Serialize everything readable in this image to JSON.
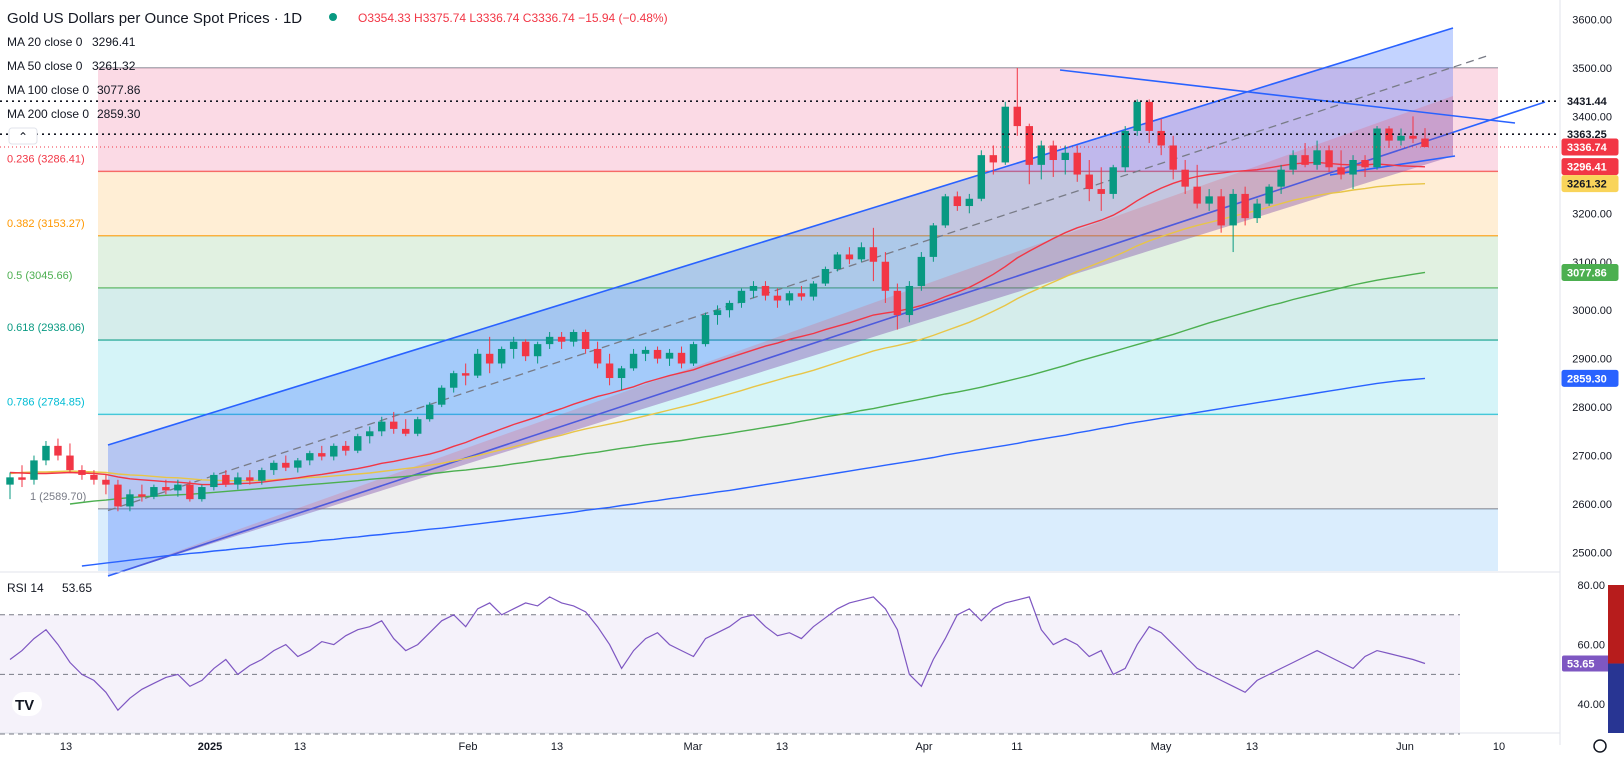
{
  "header": {
    "title": "Gold US Dollars per Ounce Spot Prices · 1D",
    "ohlc": "O3354.33 H3375.74 L3336.74 C3336.74 −15.94 (−0.48%)"
  },
  "legend": [
    {
      "label": "MA 20 close 0",
      "value": "3296.41",
      "color": "#f23645"
    },
    {
      "label": "MA 50 close 0",
      "value": "3261.32",
      "color": "#e0b000"
    },
    {
      "label": "MA 100 close 0",
      "value": "3077.86",
      "color": "#4caf50"
    },
    {
      "label": "MA 200 close 0",
      "value": "2859.30",
      "color": "#2962ff"
    }
  ],
  "colors": {
    "up": "#089981",
    "down": "#f23645",
    "channel": "#2962ff",
    "ma20": "#f23645",
    "ma50": "#e8c547",
    "ma100": "#4caf50",
    "ma200": "#2962ff",
    "rsi": "#7e57c2"
  },
  "price_badges": [
    {
      "value": "3431.44",
      "bg": "#ffffff",
      "fg": "#131722"
    },
    {
      "value": "3363.25",
      "bg": "#ffffff",
      "fg": "#131722"
    },
    {
      "value": "3336.74",
      "bg": "#f23645",
      "fg": "#ffffff"
    },
    {
      "value": "3296.41",
      "bg": "#f23645",
      "fg": "#ffffff"
    },
    {
      "value": "3261.32",
      "bg": "#f9d45a",
      "fg": "#131722"
    },
    {
      "value": "3077.86",
      "bg": "#4caf50",
      "fg": "#ffffff"
    },
    {
      "value": "2859.30",
      "bg": "#2962ff",
      "fg": "#ffffff"
    }
  ],
  "rsi": {
    "label": "RSI 14",
    "value": "53.65",
    "ticks": [
      "80.00",
      "60.00",
      "40.00"
    ]
  },
  "watermark": "TV",
  "chart_data": {
    "type": "candlestick",
    "title": "Gold US Dollars per Ounce Spot Prices · 1D",
    "y_axis": {
      "ticks": [
        "3600.00",
        "3500.00",
        "3400.00",
        "3300.00",
        "3200.00",
        "3100.00",
        "3000.00",
        "2900.00",
        "2800.00",
        "2700.00",
        "2600.00",
        "2500.00"
      ],
      "range": [
        2470,
        3610
      ]
    },
    "x_axis": {
      "ticks": [
        "13",
        "2025",
        "13",
        "Feb",
        "13",
        "Mar",
        "13",
        "Apr",
        "11",
        "May",
        "13",
        "Jun",
        "10"
      ]
    },
    "fibonacci": [
      {
        "level": "0.236",
        "price": 3286.41,
        "text": "0.236 (3286.41)",
        "color": "#f23645"
      },
      {
        "level": "0.382",
        "price": 3153.27,
        "text": "0.382 (3153.27)",
        "color": "#ff9800"
      },
      {
        "level": "0.5",
        "price": 3045.66,
        "text": "0.5 (3045.66)",
        "color": "#4caf50"
      },
      {
        "level": "0.618",
        "price": 2938.06,
        "text": "0.618 (2938.06)",
        "color": "#089981"
      },
      {
        "level": "0.786",
        "price": 2784.85,
        "text": "0.786 (2784.85)",
        "color": "#00bcd4"
      },
      {
        "level": "1",
        "price": 2589.7,
        "text": "1 (2589.70)",
        "color": "#787b86"
      }
    ],
    "fib_top": 3500,
    "candles": [
      [
        2640,
        2665,
        2610,
        2655
      ],
      [
        2655,
        2680,
        2635,
        2650
      ],
      [
        2650,
        2700,
        2640,
        2690
      ],
      [
        2690,
        2730,
        2680,
        2720
      ],
      [
        2720,
        2735,
        2690,
        2700
      ],
      [
        2700,
        2725,
        2665,
        2670
      ],
      [
        2670,
        2680,
        2650,
        2660
      ],
      [
        2660,
        2670,
        2640,
        2650
      ],
      [
        2650,
        2660,
        2620,
        2640
      ],
      [
        2640,
        2650,
        2585,
        2595
      ],
      [
        2595,
        2630,
        2585,
        2620
      ],
      [
        2620,
        2640,
        2605,
        2615
      ],
      [
        2615,
        2640,
        2610,
        2635
      ],
      [
        2635,
        2650,
        2620,
        2628
      ],
      [
        2628,
        2650,
        2615,
        2640
      ],
      [
        2640,
        2648,
        2605,
        2610
      ],
      [
        2610,
        2640,
        2605,
        2635
      ],
      [
        2635,
        2665,
        2628,
        2660
      ],
      [
        2660,
        2670,
        2635,
        2640
      ],
      [
        2640,
        2665,
        2630,
        2655
      ],
      [
        2655,
        2670,
        2640,
        2648
      ],
      [
        2648,
        2675,
        2640,
        2670
      ],
      [
        2670,
        2690,
        2660,
        2685
      ],
      [
        2685,
        2700,
        2668,
        2675
      ],
      [
        2675,
        2695,
        2665,
        2690
      ],
      [
        2690,
        2710,
        2680,
        2705
      ],
      [
        2705,
        2720,
        2690,
        2698
      ],
      [
        2698,
        2725,
        2690,
        2720
      ],
      [
        2720,
        2730,
        2700,
        2710
      ],
      [
        2710,
        2745,
        2705,
        2740
      ],
      [
        2740,
        2760,
        2725,
        2750
      ],
      [
        2750,
        2780,
        2740,
        2770
      ],
      [
        2770,
        2790,
        2745,
        2755
      ],
      [
        2755,
        2775,
        2740,
        2745
      ],
      [
        2745,
        2780,
        2740,
        2775
      ],
      [
        2775,
        2810,
        2770,
        2805
      ],
      [
        2805,
        2845,
        2800,
        2840
      ],
      [
        2840,
        2875,
        2830,
        2870
      ],
      [
        2870,
        2890,
        2845,
        2865
      ],
      [
        2865,
        2920,
        2860,
        2910
      ],
      [
        2910,
        2945,
        2870,
        2890
      ],
      [
        2890,
        2925,
        2880,
        2920
      ],
      [
        2920,
        2945,
        2900,
        2935
      ],
      [
        2935,
        2940,
        2895,
        2905
      ],
      [
        2905,
        2935,
        2890,
        2930
      ],
      [
        2930,
        2955,
        2920,
        2945
      ],
      [
        2945,
        2955,
        2920,
        2935
      ],
      [
        2935,
        2960,
        2925,
        2955
      ],
      [
        2955,
        2960,
        2910,
        2920
      ],
      [
        2920,
        2935,
        2880,
        2890
      ],
      [
        2890,
        2910,
        2845,
        2860
      ],
      [
        2860,
        2885,
        2835,
        2880
      ],
      [
        2880,
        2920,
        2875,
        2910
      ],
      [
        2910,
        2925,
        2895,
        2918
      ],
      [
        2918,
        2925,
        2890,
        2900
      ],
      [
        2900,
        2920,
        2885,
        2912
      ],
      [
        2912,
        2925,
        2880,
        2890
      ],
      [
        2890,
        2935,
        2885,
        2930
      ],
      [
        2930,
        2995,
        2925,
        2990
      ],
      [
        2990,
        3010,
        2970,
        3000
      ],
      [
        3000,
        3020,
        2985,
        3015
      ],
      [
        3015,
        3045,
        3005,
        3040
      ],
      [
        3040,
        3060,
        3025,
        3050
      ],
      [
        3050,
        3060,
        3020,
        3030
      ],
      [
        3030,
        3045,
        3005,
        3020
      ],
      [
        3020,
        3040,
        3010,
        3035
      ],
      [
        3035,
        3050,
        3020,
        3028
      ],
      [
        3028,
        3060,
        3020,
        3055
      ],
      [
        3055,
        3090,
        3050,
        3085
      ],
      [
        3085,
        3120,
        3080,
        3115
      ],
      [
        3115,
        3130,
        3095,
        3105
      ],
      [
        3105,
        3140,
        3100,
        3130
      ],
      [
        3130,
        3170,
        3060,
        3100
      ],
      [
        3100,
        3120,
        3015,
        3040
      ],
      [
        3040,
        3055,
        2960,
        2990
      ],
      [
        2990,
        3060,
        2975,
        3050
      ],
      [
        3050,
        3120,
        3040,
        3110
      ],
      [
        3110,
        3180,
        3100,
        3175
      ],
      [
        3175,
        3240,
        3170,
        3235
      ],
      [
        3235,
        3245,
        3205,
        3215
      ],
      [
        3215,
        3240,
        3200,
        3230
      ],
      [
        3230,
        3330,
        3225,
        3320
      ],
      [
        3320,
        3340,
        3280,
        3305
      ],
      [
        3305,
        3430,
        3300,
        3420
      ],
      [
        3420,
        3500,
        3360,
        3380
      ],
      [
        3380,
        3385,
        3260,
        3300
      ],
      [
        3300,
        3350,
        3270,
        3340
      ],
      [
        3340,
        3350,
        3275,
        3310
      ],
      [
        3310,
        3340,
        3280,
        3325
      ],
      [
        3325,
        3340,
        3265,
        3280
      ],
      [
        3280,
        3310,
        3225,
        3250
      ],
      [
        3250,
        3295,
        3205,
        3240
      ],
      [
        3240,
        3300,
        3230,
        3295
      ],
      [
        3295,
        3380,
        3285,
        3370
      ],
      [
        3370,
        3435,
        3360,
        3430
      ],
      [
        3430,
        3435,
        3345,
        3370
      ],
      [
        3370,
        3395,
        3320,
        3340
      ],
      [
        3340,
        3360,
        3270,
        3290
      ],
      [
        3290,
        3310,
        3240,
        3255
      ],
      [
        3255,
        3300,
        3210,
        3220
      ],
      [
        3220,
        3250,
        3205,
        3235
      ],
      [
        3235,
        3250,
        3160,
        3175
      ],
      [
        3175,
        3250,
        3120,
        3240
      ],
      [
        3240,
        3255,
        3175,
        3190
      ],
      [
        3190,
        3230,
        3180,
        3220
      ],
      [
        3220,
        3260,
        3215,
        3255
      ],
      [
        3255,
        3300,
        3240,
        3290
      ],
      [
        3290,
        3330,
        3280,
        3320
      ],
      [
        3320,
        3345,
        3295,
        3300
      ],
      [
        3300,
        3350,
        3290,
        3330
      ],
      [
        3330,
        3340,
        3285,
        3295
      ],
      [
        3295,
        3330,
        3270,
        3280
      ],
      [
        3280,
        3320,
        3250,
        3310
      ],
      [
        3310,
        3320,
        3275,
        3295
      ],
      [
        3295,
        3380,
        3290,
        3375
      ],
      [
        3375,
        3380,
        3335,
        3350
      ],
      [
        3350,
        3375,
        3340,
        3360
      ],
      [
        3360,
        3400,
        3345,
        3354
      ],
      [
        3354.33,
        3375.74,
        3336.74,
        3336.74
      ]
    ],
    "moving_averages": {
      "MA20": [
        2665,
        2664,
        2663,
        2663,
        2664,
        2665,
        2664,
        2663,
        2661,
        2656,
        2652,
        2650,
        2648,
        2646,
        2645,
        2643,
        2640,
        2640,
        2641,
        2642,
        2643,
        2645,
        2648,
        2651,
        2654,
        2658,
        2661,
        2665,
        2669,
        2673,
        2678,
        2684,
        2688,
        2693,
        2698,
        2703,
        2710,
        2719,
        2727,
        2737,
        2746,
        2755,
        2764,
        2772,
        2780,
        2789,
        2797,
        2806,
        2814,
        2822,
        2828,
        2835,
        2842,
        2851,
        2858,
        2865,
        2871,
        2877,
        2886,
        2894,
        2902,
        2910,
        2918,
        2926,
        2932,
        2940,
        2946,
        2952,
        2960,
        2967,
        2974,
        2982,
        2990,
        2994,
        2998,
        3003,
        3010,
        3018,
        3028,
        3037,
        3047,
        3060,
        3074,
        3090,
        3108,
        3122,
        3135,
        3148,
        3160,
        3170,
        3178,
        3186,
        3196,
        3210,
        3226,
        3240,
        3252,
        3262,
        3270,
        3276,
        3280,
        3283,
        3286,
        3288,
        3290,
        3294,
        3298,
        3302,
        3304,
        3305,
        3303,
        3301,
        3300,
        3300,
        3302,
        3300,
        3298,
        3297,
        3296
      ],
      "MA50": [
        2663,
        2665,
        2666,
        2666,
        2667,
        2668,
        2667,
        2666,
        2665,
        2662,
        2660,
        2659,
        2657,
        2655,
        2654,
        2652,
        2650,
        2649,
        2648,
        2648,
        2648,
        2649,
        2650,
        2652,
        2653,
        2655,
        2656,
        2658,
        2660,
        2662,
        2664,
        2667,
        2670,
        2673,
        2676,
        2680,
        2684,
        2689,
        2694,
        2700,
        2706,
        2712,
        2718,
        2724,
        2730,
        2736,
        2742,
        2749,
        2755,
        2760,
        2765,
        2770,
        2776,
        2782,
        2788,
        2794,
        2800,
        2806,
        2813,
        2820,
        2827,
        2834,
        2842,
        2849,
        2856,
        2863,
        2869,
        2876,
        2884,
        2892,
        2900,
        2908,
        2916,
        2922,
        2927,
        2933,
        2940,
        2948,
        2957,
        2966,
        2975,
        2986,
        2998,
        3010,
        3024,
        3036,
        3047,
        3058,
        3069,
        3080,
        3090,
        3100,
        3110,
        3121,
        3133,
        3143,
        3152,
        3160,
        3168,
        3175,
        3181,
        3187,
        3194,
        3200,
        3206,
        3213,
        3220,
        3227,
        3232,
        3237,
        3241,
        3244,
        3248,
        3251,
        3255,
        3257,
        3259,
        3260,
        3261
      ],
      "MA100": [
        2600,
        2603,
        2606,
        2608,
        2611,
        2613,
        2615,
        2616,
        2618,
        2619,
        2620,
        2622,
        2624,
        2626,
        2628,
        2630,
        2632,
        2634,
        2636,
        2638,
        2640,
        2642,
        2644,
        2646,
        2648,
        2651,
        2653,
        2655,
        2657,
        2660,
        2662,
        2665,
        2668,
        2670,
        2673,
        2676,
        2679,
        2683,
        2686,
        2690,
        2693,
        2697,
        2700,
        2704,
        2707,
        2711,
        2715,
        2718,
        2722,
        2725,
        2728,
        2731,
        2735,
        2739,
        2742,
        2746,
        2750,
        2754,
        2758,
        2762,
        2766,
        2771,
        2775,
        2780,
        2784,
        2788,
        2793,
        2797,
        2802,
        2807,
        2812,
        2817,
        2822,
        2827,
        2831,
        2836,
        2841,
        2847,
        2853,
        2859,
        2865,
        2872,
        2879,
        2886,
        2894,
        2901,
        2908,
        2915,
        2922,
        2929,
        2936,
        2943,
        2950,
        2958,
        2966,
        2974,
        2981,
        2988,
        2995,
        3002,
        3009,
        3015,
        3022,
        3028,
        3034,
        3040,
        3046,
        3052,
        3057,
        3062,
        3066,
        3070,
        3074,
        3078
      ],
      "MA200": [
        2472,
        2475,
        2478,
        2481,
        2484,
        2487,
        2490,
        2493,
        2495,
        2498,
        2500,
        2503,
        2505,
        2508,
        2510,
        2513,
        2515,
        2518,
        2520,
        2522,
        2525,
        2527,
        2530,
        2532,
        2535,
        2537,
        2540,
        2542,
        2545,
        2548,
        2550,
        2553,
        2556,
        2559,
        2562,
        2565,
        2568,
        2571,
        2574,
        2577,
        2580,
        2583,
        2587,
        2590,
        2593,
        2597,
        2600,
        2604,
        2607,
        2611,
        2614,
        2618,
        2621,
        2625,
        2628,
        2632,
        2636,
        2640,
        2644,
        2648,
        2652,
        2656,
        2660,
        2664,
        2668,
        2672,
        2676,
        2680,
        2684,
        2688,
        2692,
        2696,
        2701,
        2705,
        2709,
        2713,
        2717,
        2721,
        2725,
        2730,
        2734,
        2738,
        2742,
        2747,
        2751,
        2756,
        2760,
        2765,
        2769,
        2773,
        2777,
        2781,
        2785,
        2789,
        2793,
        2797,
        2801,
        2805,
        2809,
        2813,
        2817,
        2821,
        2825,
        2829,
        2833,
        2837,
        2841,
        2845,
        2849,
        2852,
        2855,
        2857,
        2859.3
      ]
    },
    "rsi_values": [
      55,
      58,
      62,
      65,
      60,
      54,
      50,
      48,
      44,
      38,
      42,
      45,
      47,
      49,
      50,
      46,
      48,
      52,
      55,
      50,
      53,
      55,
      58,
      60,
      56,
      58,
      61,
      60,
      63,
      65,
      66,
      68,
      62,
      58,
      60,
      64,
      68,
      70,
      66,
      72,
      74,
      70,
      72,
      74,
      73,
      76,
      74,
      73,
      71,
      66,
      60,
      52,
      58,
      62,
      64,
      60,
      58,
      56,
      62,
      64,
      66,
      69,
      70,
      66,
      63,
      64,
      62,
      66,
      69,
      72,
      74,
      75,
      76,
      72,
      65,
      50,
      46,
      55,
      62,
      70,
      72,
      68,
      72,
      74,
      75,
      76,
      65,
      60,
      62,
      60,
      56,
      58,
      50,
      52,
      60,
      66,
      64,
      60,
      56,
      52,
      50,
      48,
      46,
      44,
      48,
      50,
      52,
      54,
      56,
      58,
      56,
      54,
      52,
      56,
      58,
      57,
      56,
      55,
      53.65
    ],
    "channel": {
      "upper": [
        [
          2713,
          3551
        ]
      ],
      "note": "ascending channel"
    }
  }
}
